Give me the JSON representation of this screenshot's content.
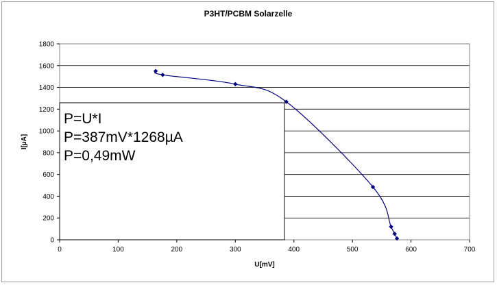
{
  "chart_data": {
    "type": "scatter",
    "title": "P3HT/PCBM Solarzelle",
    "xlabel": "U[mV]",
    "ylabel": "I[µA]",
    "xlim": [
      0,
      700
    ],
    "ylim": [
      0,
      1800
    ],
    "xticks": [
      0,
      100,
      200,
      300,
      400,
      500,
      600,
      700
    ],
    "yticks": [
      0,
      200,
      400,
      600,
      800,
      1000,
      1200,
      1400,
      1600,
      1800
    ],
    "grid": "horizontal",
    "legend": "none",
    "series": [
      {
        "color": "#000080",
        "smooth": true,
        "points": [
          {
            "x": 164,
            "y": 1550
          },
          {
            "x": 176,
            "y": 1515
          },
          {
            "x": 300,
            "y": 1430
          },
          {
            "x": 387,
            "y": 1268
          },
          {
            "x": 535,
            "y": 485
          },
          {
            "x": 566,
            "y": 120
          },
          {
            "x": 572,
            "y": 55
          },
          {
            "x": 576,
            "y": 12
          }
        ]
      }
    ],
    "annotation": {
      "lines": [
        "P=U*I",
        "P=387mV*1268µA",
        "P=0,49mW"
      ]
    }
  }
}
